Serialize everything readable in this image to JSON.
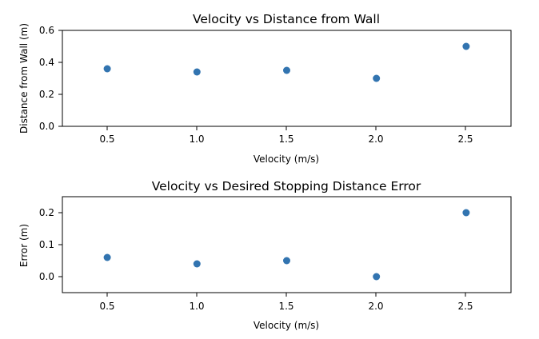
{
  "chart_data": [
    {
      "type": "scatter",
      "title": "Velocity vs Distance from Wall",
      "xlabel": "Velocity (m/s)",
      "ylabel": "Distance from Wall (m)",
      "xlim": [
        0.25,
        2.75
      ],
      "ylim": [
        0.0,
        0.6
      ],
      "xticks": [
        0.5,
        1.0,
        1.5,
        2.0,
        2.5
      ],
      "xtick_labels": [
        "0.5",
        "1.0",
        "1.5",
        "2.0",
        "2.5"
      ],
      "yticks": [
        0.0,
        0.2,
        0.4,
        0.6
      ],
      "ytick_labels": [
        "0.0",
        "0.2",
        "0.4",
        "0.6"
      ],
      "grid": false,
      "color": "#3274b0",
      "x": [
        0.5,
        1.0,
        1.5,
        2.0,
        2.5
      ],
      "y": [
        0.36,
        0.34,
        0.35,
        0.3,
        0.5
      ]
    },
    {
      "type": "scatter",
      "title": "Velocity vs Desired Stopping Distance Error",
      "xlabel": "Velocity (m/s)",
      "ylabel": "Error (m)",
      "xlim": [
        0.25,
        2.75
      ],
      "ylim": [
        -0.05,
        0.25
      ],
      "xticks": [
        0.5,
        1.0,
        1.5,
        2.0,
        2.5
      ],
      "xtick_labels": [
        "0.5",
        "1.0",
        "1.5",
        "2.0",
        "2.5"
      ],
      "yticks": [
        0.0,
        0.1,
        0.2
      ],
      "ytick_labels": [
        "0.0",
        "0.1",
        "0.2"
      ],
      "grid": false,
      "color": "#3274b0",
      "x": [
        0.5,
        1.0,
        1.5,
        2.0,
        2.5
      ],
      "y": [
        0.06,
        0.04,
        0.05,
        0.0,
        0.2
      ]
    }
  ]
}
